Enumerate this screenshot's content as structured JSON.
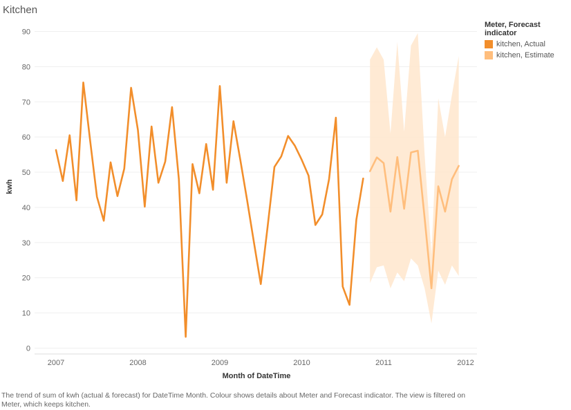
{
  "title": "Kitchen",
  "legend": {
    "title": "Meter, Forecast indicator",
    "items": [
      {
        "label": "kitchen, Actual",
        "color": "#f28e2b"
      },
      {
        "label": "kitchen, Estimate",
        "color": "#ffbe7d"
      }
    ]
  },
  "caption": "The trend of sum of kwh (actual & forecast)  for DateTime Month.  Colour shows details about Meter and Forecast indicator. The view is filtered on Meter, which keeps kitchen.",
  "chart_data": {
    "type": "line",
    "xlabel": "Month of DateTime",
    "ylabel": "kwh",
    "x_ticks": [
      "2007",
      "2008",
      "2009",
      "2010",
      "2011",
      "2012"
    ],
    "y_ticks": [
      0,
      10,
      20,
      30,
      40,
      50,
      60,
      70,
      80,
      90
    ],
    "ylim": [
      -2,
      92
    ],
    "xlim": [
      "2006-10",
      "2012-01"
    ],
    "grid": true,
    "legend_position": "top-right",
    "series": [
      {
        "name": "kitchen, Actual",
        "color": "#f28e2b",
        "x": [
          "2007-01",
          "2007-02",
          "2007-03",
          "2007-04",
          "2007-05",
          "2007-06",
          "2007-07",
          "2007-08",
          "2007-09",
          "2007-10",
          "2007-11",
          "2007-12",
          "2008-01",
          "2008-02",
          "2008-03",
          "2008-04",
          "2008-05",
          "2008-06",
          "2008-07",
          "2008-08",
          "2008-09",
          "2008-10",
          "2008-11",
          "2008-12",
          "2009-01",
          "2009-02",
          "2009-03",
          "2009-04",
          "2009-05",
          "2009-06",
          "2009-07",
          "2009-08",
          "2009-09",
          "2009-10",
          "2009-11",
          "2009-12",
          "2010-01",
          "2010-02",
          "2010-03",
          "2010-04",
          "2010-05",
          "2010-06",
          "2010-07",
          "2010-08",
          "2010-09",
          "2010-10"
        ],
        "values": [
          56.3,
          47.5,
          60.5,
          42,
          75.5,
          59,
          43,
          36.2,
          52.8,
          43.2,
          51,
          74,
          62,
          40.2,
          63,
          47,
          53,
          68.5,
          48,
          3.2,
          52.3,
          44,
          58,
          45,
          74.5,
          47,
          64.5,
          53.5,
          42,
          30,
          18.2,
          34.5,
          51.5,
          54.5,
          60.3,
          57.5,
          53.5,
          49,
          35,
          38,
          48,
          65.5,
          17.5,
          12.3,
          36.5,
          48.2
        ]
      },
      {
        "name": "kitchen, Estimate",
        "color": "#ffbe7d",
        "x": [
          "2010-11",
          "2010-12",
          "2011-01",
          "2011-02",
          "2011-03",
          "2011-04",
          "2011-05",
          "2011-06",
          "2011-07",
          "2011-08",
          "2011-09",
          "2011-10",
          "2011-11",
          "2011-12"
        ],
        "values": [
          50.3,
          54.2,
          52.6,
          38.8,
          54.3,
          39.6,
          55.6,
          56.1,
          37,
          17,
          46,
          38.8,
          48,
          51.8
        ],
        "band_upper": [
          82,
          85.5,
          82,
          61,
          87,
          61.5,
          86,
          89.5,
          55,
          26.5,
          71,
          60,
          72,
          83
        ],
        "band_lower": [
          18.5,
          23,
          23.5,
          17,
          21.5,
          19,
          25.5,
          23.5,
          17,
          7,
          22,
          18,
          23.5,
          20.5
        ]
      }
    ]
  }
}
